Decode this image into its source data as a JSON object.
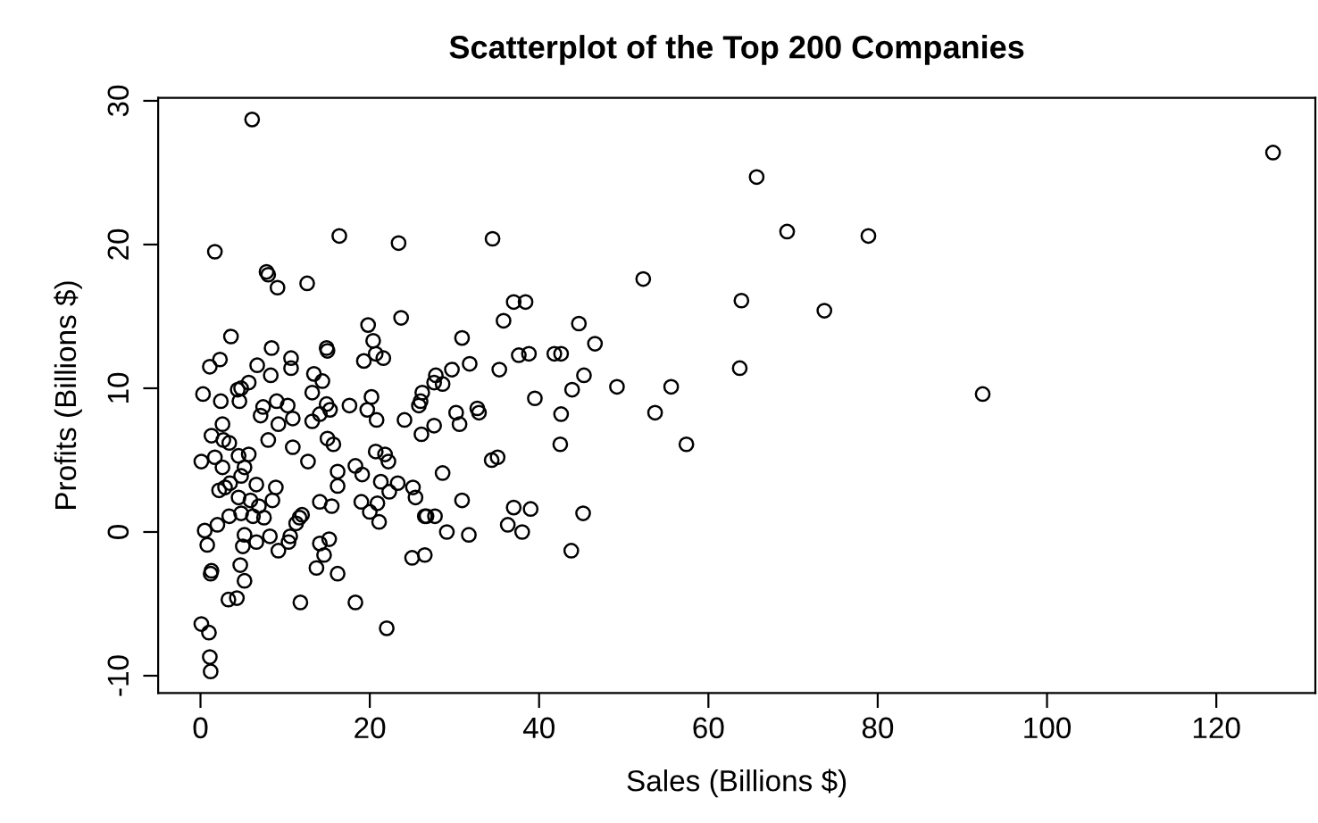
{
  "chart_data": {
    "type": "scatter",
    "title": "Scatterplot of the Top 200 Companies",
    "xlabel": "Sales (Billions $)",
    "ylabel": "Profits (Billions $)",
    "xlim": [
      -5,
      131.7
    ],
    "ylim": [
      -11.2,
      30.2
    ],
    "xticks": [
      0,
      20,
      40,
      60,
      80,
      100,
      120
    ],
    "yticks": [
      -10,
      0,
      10,
      20,
      30
    ],
    "marker": "circle",
    "series": [
      {
        "color": "#000000",
        "x": [
          6.1,
          1.7,
          16.4,
          23.4,
          7.8,
          8.0,
          9.1,
          12.6,
          19.8,
          23.7,
          20.4,
          20.7,
          21.6,
          19.3,
          3.6,
          2.3,
          1.1,
          8.4,
          6.7,
          10.7,
          10.7,
          14.9,
          15.0,
          8.3,
          13.4,
          14.4,
          5.7,
          4.8,
          4.4,
          0.3,
          13.2,
          20.2,
          26.2,
          27.8,
          2.4,
          4.6,
          14.9,
          17.6,
          19.7,
          20.8,
          24.1,
          26.0,
          27.6,
          26.1,
          7.4,
          9.0,
          10.3,
          7.1,
          9.2,
          10.9,
          13.2,
          14.1,
          15.3,
          2.6,
          1.3,
          2.7,
          8.0,
          10.9,
          12.7,
          15.0,
          15.7,
          16.2,
          18.3,
          19.1,
          20.7,
          21.8,
          22.2,
          21.3,
          23.3,
          25.1,
          25.4,
          26.5,
          22.3,
          19.0,
          20.9,
          20.0,
          21.1,
          16.2,
          15.5,
          14.1,
          0.1,
          1.7,
          2.6,
          4.5,
          5.7,
          5.2,
          4.8,
          6.6,
          8.9,
          8.5,
          2.2,
          2.9,
          4.5,
          3.4,
          4.8,
          6.2,
          7.5,
          6.9,
          11.7,
          12.0,
          11.3,
          0.5,
          0.8,
          2.0,
          5.2,
          5.0,
          6.6,
          8.2,
          9.2,
          10.4,
          14.1,
          14.6,
          15.2,
          13.7,
          16.2,
          1.3,
          1.2,
          4.7,
          5.2,
          3.3,
          4.3,
          11.8,
          18.3,
          22.0,
          0.1,
          1.0,
          1.1,
          1.2,
          3.4,
          3.5,
          10.6,
          5.9,
          34.5,
          52.3,
          37.0,
          38.4,
          35.8,
          44.7,
          46.6,
          30.9,
          37.6,
          38.8,
          41.8,
          42.6,
          31.8,
          29.7,
          28.6,
          35.3,
          45.3,
          43.9,
          49.2,
          55.6,
          39.5,
          42.6,
          53.7,
          57.4,
          42.5,
          25.8,
          27.6,
          30.2,
          30.6,
          32.7,
          32.9,
          34.4,
          35.1,
          28.6,
          30.9,
          26.7,
          27.7,
          29.1,
          31.7,
          37.0,
          39.0,
          36.3,
          38.0,
          45.2,
          43.8,
          26.5,
          25.0,
          65.7,
          69.3,
          78.9,
          63.9,
          73.7,
          63.7,
          92.4,
          126.7
        ],
        "values": [
          28.7,
          19.5,
          20.6,
          20.1,
          18.1,
          17.9,
          17.0,
          17.3,
          14.4,
          14.9,
          13.3,
          12.4,
          12.1,
          11.9,
          13.6,
          12.0,
          11.5,
          12.8,
          11.6,
          12.1,
          11.4,
          12.8,
          12.6,
          10.9,
          11.0,
          10.5,
          10.4,
          10.0,
          9.9,
          9.6,
          9.7,
          9.4,
          9.7,
          10.9,
          9.1,
          9.1,
          8.9,
          8.8,
          8.5,
          7.8,
          7.8,
          9.1,
          10.4,
          6.8,
          8.7,
          9.1,
          8.8,
          8.1,
          7.5,
          7.9,
          7.7,
          8.2,
          8.5,
          7.5,
          6.7,
          6.4,
          6.4,
          5.9,
          4.9,
          6.5,
          6.1,
          4.2,
          4.6,
          4.0,
          5.6,
          5.4,
          4.9,
          3.5,
          3.4,
          3.1,
          2.4,
          1.1,
          2.8,
          2.1,
          2.0,
          1.4,
          0.7,
          3.2,
          1.8,
          2.1,
          4.9,
          5.2,
          4.5,
          5.3,
          5.4,
          4.5,
          3.9,
          3.3,
          3.1,
          2.2,
          2.9,
          3.1,
          2.4,
          1.1,
          1.3,
          1.1,
          1.0,
          1.8,
          1.0,
          1.2,
          0.6,
          0.1,
          -0.9,
          0.5,
          -0.2,
          -1.0,
          -0.7,
          -0.3,
          -1.3,
          -0.7,
          -0.8,
          -1.6,
          -0.5,
          -2.5,
          -2.9,
          -2.7,
          -2.9,
          -2.3,
          -3.4,
          -4.7,
          -4.6,
          -4.9,
          -4.9,
          -6.7,
          -6.4,
          -7.0,
          -8.7,
          -9.7,
          6.2,
          3.4,
          -0.3,
          2.2,
          20.4,
          17.6,
          16.0,
          16.0,
          14.7,
          14.5,
          13.1,
          13.5,
          12.3,
          12.4,
          12.4,
          12.4,
          11.7,
          11.3,
          10.3,
          11.3,
          10.9,
          9.9,
          10.1,
          10.1,
          9.3,
          8.2,
          8.3,
          6.1,
          6.1,
          8.8,
          7.4,
          8.3,
          7.5,
          8.6,
          8.3,
          5.0,
          5.2,
          4.1,
          2.2,
          1.1,
          1.1,
          0.0,
          -0.2,
          1.7,
          1.6,
          0.5,
          0.0,
          1.3,
          -1.3,
          -1.6,
          -1.8,
          24.7,
          20.9,
          20.6,
          16.1,
          15.4,
          11.4,
          9.6,
          26.4
        ]
      }
    ]
  }
}
